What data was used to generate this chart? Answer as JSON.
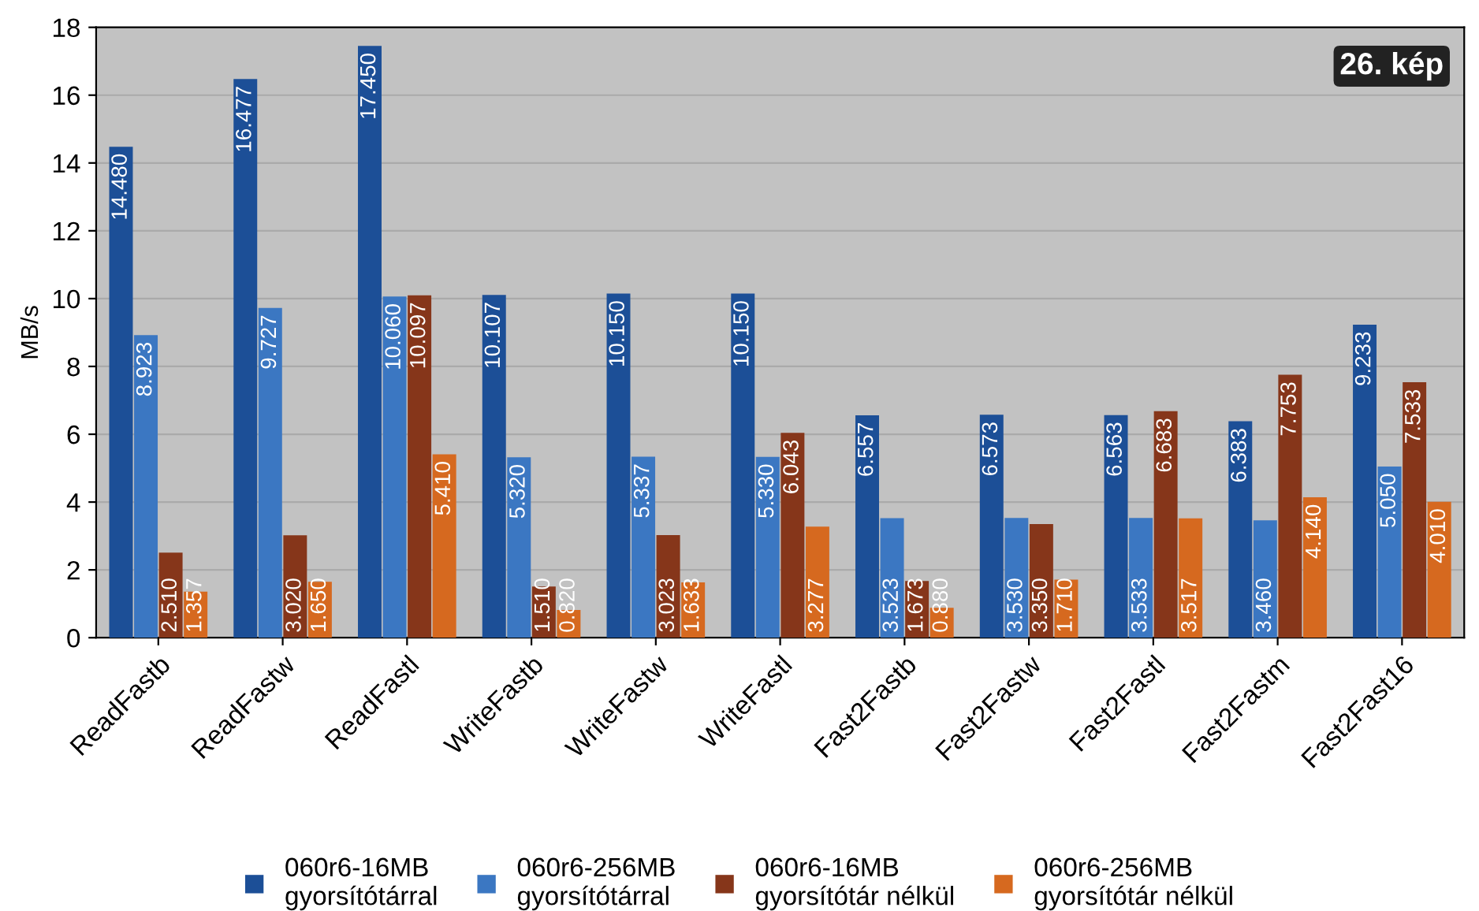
{
  "chart_data": {
    "type": "bar",
    "ylabel": "MB/s",
    "annotations": [
      "26. kép"
    ],
    "categories": [
      "ReadFastb",
      "ReadFastw",
      "ReadFastl",
      "WriteFastb",
      "WriteFastw",
      "WriteFastl",
      "Fast2Fastb",
      "Fast2Fastw",
      "Fast2Fastl",
      "Fast2Fastm",
      "Fast2Fast16"
    ],
    "series": [
      {
        "name": "060r6-16MB\ngyorsítótárral",
        "color": "#1c4f97",
        "values": [
          14.48,
          16.477,
          17.45,
          10.107,
          10.15,
          10.15,
          6.557,
          6.573,
          6.563,
          6.383,
          9.233
        ],
        "value_labels": [
          "14.480",
          "16.477",
          "17.450",
          "10.107",
          "10.150",
          "10.150",
          "6.557",
          "6.573",
          "6.563",
          "6.383",
          "9.233"
        ]
      },
      {
        "name": "060r6-256MB\ngyorsítótárral",
        "color": "#3b77c2",
        "values": [
          8.923,
          9.727,
          10.06,
          5.32,
          5.337,
          5.33,
          3.523,
          3.53,
          3.533,
          3.46,
          5.05
        ],
        "value_labels": [
          "8.923",
          "9.727",
          "10.060",
          "5.320",
          "5.337",
          "5.330",
          "3.523",
          "3.530",
          "3.533",
          "3.460",
          "5.050"
        ]
      },
      {
        "name": "060r6-16MB\ngyorsítótár nélkül",
        "color": "#86361a",
        "values": [
          2.51,
          3.02,
          10.097,
          1.51,
          3.023,
          6.043,
          1.673,
          3.35,
          6.683,
          7.753,
          7.533
        ],
        "value_labels": [
          "2.510",
          "3.020",
          "10.097",
          "1.510",
          "3.023",
          "6.043",
          "1.673",
          "3.350",
          "6.683",
          "7.753",
          "7.533"
        ]
      },
      {
        "name": "060r6-256MB\ngyorsítótár nélkül",
        "color": "#d6691f",
        "values": [
          1.357,
          1.65,
          5.41,
          0.82,
          1.633,
          3.277,
          0.88,
          1.71,
          3.517,
          4.14,
          4.01
        ],
        "value_labels": [
          "1.357",
          "1.650",
          "5.410",
          "0.820",
          "1.633",
          "3.277",
          "0.880",
          "1.710",
          "3.517",
          "4.140",
          "4.010"
        ]
      }
    ],
    "ylim": [
      0,
      18
    ],
    "yticks": [
      0,
      2,
      4,
      6,
      8,
      10,
      12,
      14,
      16,
      18
    ],
    "grid": "y",
    "legend": "bottom"
  }
}
